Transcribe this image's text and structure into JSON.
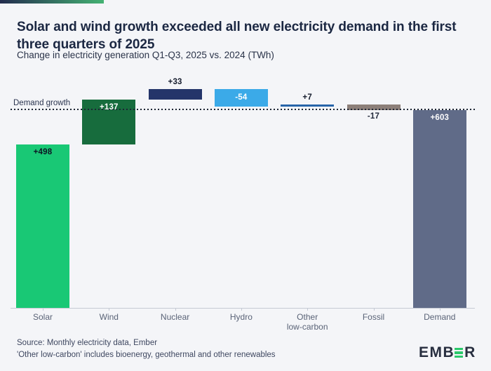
{
  "header": {
    "title": "Solar and wind growth exceeded all new electricity demand in the first three quarters of 2025",
    "subtitle": "Change in electricity generation Q1-Q3, 2025 vs. 2024 (TWh)"
  },
  "chart_data": {
    "type": "bar",
    "subtype": "waterfall",
    "unit": "TWh",
    "title": "Change in electricity generation Q1-Q3, 2025 vs. 2024 (TWh)",
    "baseline_label": "Demand growth",
    "baseline_value": 603,
    "ylim": [
      0,
      668
    ],
    "grid": false,
    "legend": "none",
    "categories": [
      "Solar",
      "Wind",
      "Nuclear",
      "Hydro",
      "Other low-carbon",
      "Fossil",
      "Demand"
    ],
    "series": [
      {
        "id": "solar",
        "name": "Solar",
        "kind": "delta",
        "value": 498,
        "label": "+498",
        "color": "#19c875",
        "label_color": "#0c1322",
        "label_pos": "inside-top"
      },
      {
        "id": "wind",
        "name": "Wind",
        "kind": "delta",
        "value": 137,
        "label": "+137",
        "color": "#176c3d",
        "label_color": "#ffffff",
        "label_pos": "inside-top"
      },
      {
        "id": "nuclear",
        "name": "Nuclear",
        "kind": "delta",
        "value": 33,
        "label": "+33",
        "color": "#24356a",
        "label_color": "#141b2c",
        "label_pos": "above"
      },
      {
        "id": "hydro",
        "name": "Hydro",
        "kind": "delta",
        "value": -54,
        "label": "-54",
        "color": "#3baae8",
        "label_color": "#ffffff",
        "label_pos": "inside-center"
      },
      {
        "id": "other-low-carbon",
        "name": "Other low-carbon",
        "axis_lines": [
          "Other",
          "low-carbon"
        ],
        "kind": "delta",
        "value": 7,
        "label": "+7",
        "color": "#2764a9",
        "label_color": "#141b2c",
        "label_pos": "above"
      },
      {
        "id": "fossil",
        "name": "Fossil",
        "kind": "delta",
        "value": -17,
        "label": "-17",
        "color": "#8c7f79",
        "label_color": "#22293b",
        "label_pos": "below"
      },
      {
        "id": "demand",
        "name": "Demand",
        "kind": "total",
        "value": 603,
        "label": "+603",
        "color": "#606b88",
        "label_color": "#ffffff",
        "label_pos": "inside-top"
      }
    ]
  },
  "footer": {
    "source": "Source: Monthly electricity data, Ember",
    "note": "'Other low-carbon' includes bioenergy, geothermal and other renewables"
  },
  "logo": {
    "text_left": "EMB",
    "text_right": "R",
    "green": "#2bc96b"
  },
  "colors": {
    "background": "#f4f5f8",
    "accent_gradient_from": "#232c4e",
    "accent_gradient_to": "#44b273",
    "title_text": "#1b2742",
    "axis": "#c5cad4",
    "axis_text": "#5a6377",
    "dotted_line": "#1d2534",
    "footer_text": "#3e4760"
  }
}
